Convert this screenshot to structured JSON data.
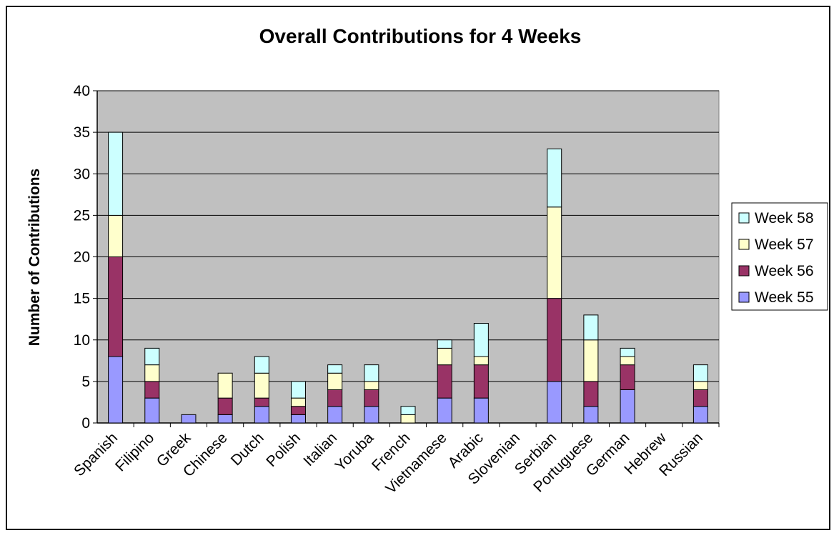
{
  "chart_data": {
    "type": "bar",
    "stacked": true,
    "title": "Overall Contributions for 4 Weeks",
    "xlabel": "",
    "ylabel": "Number of Contributions",
    "ylim": [
      0,
      40
    ],
    "yticks": [
      0,
      5,
      10,
      15,
      20,
      25,
      30,
      35,
      40
    ],
    "grid": true,
    "legend_position": "right",
    "plot_background": "#c0c0c0",
    "categories": [
      "Spanish",
      "Filipino",
      "Greek",
      "Chinese",
      "Dutch",
      "Polish",
      "Italian",
      "Yoruba",
      "French",
      "Vietnamese",
      "Arabic",
      "Slovenian",
      "Serbian",
      "Portuguese",
      "German",
      "Hebrew",
      "Russian"
    ],
    "series": [
      {
        "name": "Week 55",
        "color": "#9999ff",
        "values": [
          8,
          3,
          1,
          1,
          2,
          1,
          2,
          2,
          0,
          3,
          3,
          0,
          5,
          2,
          4,
          0,
          2
        ]
      },
      {
        "name": "Week 56",
        "color": "#993366",
        "values": [
          12,
          2,
          0,
          2,
          1,
          1,
          2,
          2,
          0,
          4,
          4,
          0,
          10,
          3,
          3,
          0,
          2
        ]
      },
      {
        "name": "Week 57",
        "color": "#ffffcc",
        "values": [
          5,
          2,
          0,
          3,
          3,
          1,
          2,
          1,
          1,
          2,
          1,
          0,
          11,
          5,
          1,
          0,
          1
        ]
      },
      {
        "name": "Week 58",
        "color": "#ccffff",
        "values": [
          10,
          2,
          0,
          0,
          2,
          2,
          1,
          2,
          1,
          1,
          4,
          0,
          7,
          3,
          1,
          0,
          2
        ]
      }
    ]
  }
}
